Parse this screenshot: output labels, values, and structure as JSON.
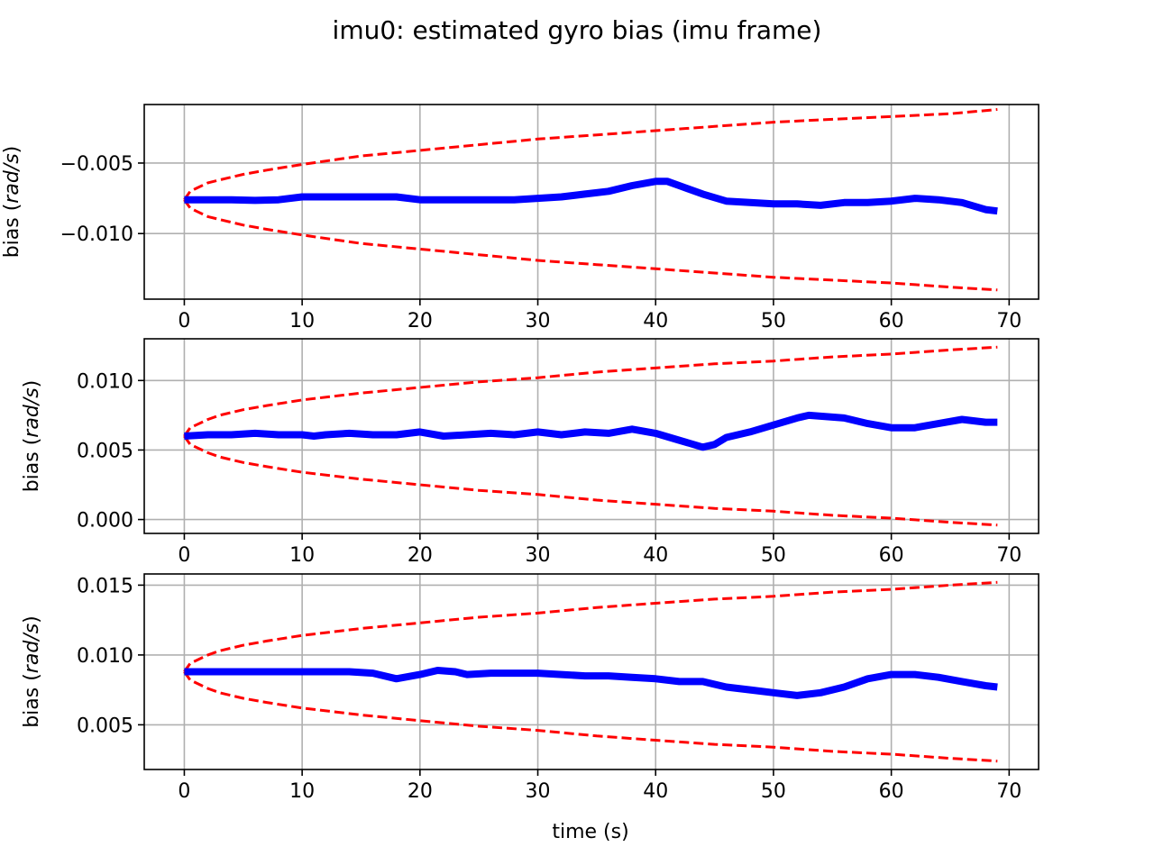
{
  "figure": {
    "title": "imu0: estimated gyro bias (imu frame)",
    "xlabel": "time (s)"
  },
  "colors": {
    "estimate": "#0000ff",
    "bound": "#ff0000",
    "grid": "#b0b0b0",
    "axes": "#000000"
  },
  "chart_data": [
    {
      "type": "line",
      "ylabel_prefix": "bias (",
      "ylabel_unit": "rad/s",
      "ylabel_suffix": ")",
      "xlim": [
        -3.4,
        72.5
      ],
      "ylim": [
        -0.01465,
        -0.00085
      ],
      "xticks": [
        0,
        10,
        20,
        30,
        40,
        50,
        60,
        70
      ],
      "xtick_labels": [
        "0",
        "10",
        "20",
        "30",
        "40",
        "50",
        "60",
        "70"
      ],
      "yticks": [
        -0.005,
        -0.01
      ],
      "ytick_labels": [
        "−0.005",
        "−0.010"
      ],
      "series": [
        {
          "role": "estimate",
          "style": "solid",
          "x": [
            0,
            2,
            4,
            6,
            8,
            10,
            12,
            14,
            16,
            18,
            20,
            22,
            24,
            26,
            28,
            30,
            32,
            34,
            36,
            38,
            40,
            41,
            42,
            44,
            46,
            48,
            50,
            52,
            54,
            56,
            58,
            60,
            62,
            64,
            66,
            68,
            69
          ],
          "y": [
            -0.0076,
            -0.0076,
            -0.0076,
            -0.00765,
            -0.0076,
            -0.0074,
            -0.0074,
            -0.0074,
            -0.0074,
            -0.0074,
            -0.0076,
            -0.0076,
            -0.0076,
            -0.0076,
            -0.0076,
            -0.0075,
            -0.0074,
            -0.0072,
            -0.007,
            -0.0066,
            -0.0063,
            -0.0063,
            -0.0066,
            -0.0072,
            -0.0077,
            -0.0078,
            -0.0079,
            -0.0079,
            -0.008,
            -0.0078,
            -0.0078,
            -0.0077,
            -0.0075,
            -0.0076,
            -0.0078,
            -0.0083,
            -0.0084
          ]
        },
        {
          "role": "upper-bound",
          "style": "dashed",
          "x": [
            0,
            0.5,
            1,
            2,
            3,
            5,
            7,
            10,
            15,
            20,
            25,
            30,
            35,
            40,
            45,
            50,
            55,
            60,
            65,
            69
          ],
          "y": [
            -0.0076,
            -0.007,
            -0.0068,
            -0.0064,
            -0.0062,
            -0.0058,
            -0.0055,
            -0.0051,
            -0.0045,
            -0.0041,
            -0.0037,
            -0.0033,
            -0.003,
            -0.0027,
            -0.0024,
            -0.0021,
            -0.0019,
            -0.0017,
            -0.0015,
            -0.0012
          ]
        },
        {
          "role": "lower-bound",
          "style": "dashed",
          "x": [
            0,
            0.5,
            1,
            2,
            3,
            5,
            7,
            10,
            15,
            20,
            25,
            30,
            35,
            40,
            45,
            50,
            55,
            60,
            65,
            69
          ],
          "y": [
            -0.0076,
            -0.0082,
            -0.0084,
            -0.0088,
            -0.009,
            -0.0094,
            -0.0097,
            -0.0101,
            -0.0107,
            -0.0111,
            -0.0115,
            -0.0119,
            -0.0122,
            -0.0125,
            -0.0128,
            -0.0131,
            -0.0133,
            -0.0135,
            -0.0138,
            -0.014
          ]
        }
      ],
      "grid": true,
      "legend": "none"
    },
    {
      "type": "line",
      "ylabel_prefix": "bias (",
      "ylabel_unit": "rad/s",
      "ylabel_suffix": ")",
      "xlim": [
        -3.4,
        72.5
      ],
      "ylim": [
        -0.001,
        0.013
      ],
      "xticks": [
        0,
        10,
        20,
        30,
        40,
        50,
        60,
        70
      ],
      "xtick_labels": [
        "0",
        "10",
        "20",
        "30",
        "40",
        "50",
        "60",
        "70"
      ],
      "yticks": [
        0.01,
        0.005,
        0.0
      ],
      "ytick_labels": [
        "0.010",
        "0.005",
        "0.000"
      ],
      "series": [
        {
          "role": "estimate",
          "style": "solid",
          "x": [
            0,
            2,
            4,
            6,
            8,
            10,
            11,
            12,
            14,
            16,
            18,
            20,
            22,
            24,
            26,
            28,
            30,
            32,
            34,
            36,
            38,
            40,
            42,
            44,
            45,
            46,
            48,
            50,
            52,
            53,
            56,
            58,
            60,
            62,
            64,
            66,
            68,
            69
          ],
          "y": [
            0.006,
            0.0061,
            0.0061,
            0.0062,
            0.0061,
            0.0061,
            0.006,
            0.0061,
            0.0062,
            0.0061,
            0.0061,
            0.0063,
            0.006,
            0.0061,
            0.0062,
            0.0061,
            0.0063,
            0.0061,
            0.0063,
            0.0062,
            0.0065,
            0.0062,
            0.0057,
            0.0052,
            0.0054,
            0.0059,
            0.0063,
            0.0068,
            0.0073,
            0.0075,
            0.0073,
            0.0069,
            0.0066,
            0.0066,
            0.0069,
            0.0072,
            0.007,
            0.007
          ]
        },
        {
          "role": "upper-bound",
          "style": "dashed",
          "x": [
            0,
            0.5,
            1,
            2,
            3,
            5,
            7,
            10,
            15,
            20,
            25,
            30,
            35,
            40,
            45,
            50,
            55,
            60,
            65,
            69
          ],
          "y": [
            0.006,
            0.0066,
            0.0068,
            0.0072,
            0.0075,
            0.0079,
            0.0082,
            0.0086,
            0.0091,
            0.0095,
            0.0099,
            0.0102,
            0.0106,
            0.0109,
            0.0112,
            0.0114,
            0.0117,
            0.0119,
            0.0122,
            0.0124
          ]
        },
        {
          "role": "lower-bound",
          "style": "dashed",
          "x": [
            0,
            0.5,
            1,
            2,
            3,
            5,
            7,
            10,
            15,
            20,
            25,
            30,
            35,
            40,
            45,
            50,
            55,
            60,
            65,
            69
          ],
          "y": [
            0.006,
            0.0054,
            0.0052,
            0.0048,
            0.0045,
            0.0041,
            0.0038,
            0.0034,
            0.0029,
            0.0025,
            0.0021,
            0.0018,
            0.0014,
            0.0011,
            0.0008,
            0.0006,
            0.0003,
            0.0001,
            -0.0002,
            -0.0004
          ]
        }
      ],
      "grid": true,
      "legend": "none"
    },
    {
      "type": "line",
      "ylabel_prefix": "bias (",
      "ylabel_unit": "rad/s",
      "ylabel_suffix": ")",
      "xlim": [
        -3.4,
        72.5
      ],
      "ylim": [
        0.0018,
        0.0158
      ],
      "xticks": [
        0,
        10,
        20,
        30,
        40,
        50,
        60,
        70
      ],
      "xtick_labels": [
        "0",
        "10",
        "20",
        "30",
        "40",
        "50",
        "60",
        "70"
      ],
      "yticks": [
        0.015,
        0.01,
        0.005
      ],
      "ytick_labels": [
        "0.015",
        "0.010",
        "0.005"
      ],
      "series": [
        {
          "role": "estimate",
          "style": "solid",
          "x": [
            0,
            2,
            4,
            6,
            8,
            10,
            12,
            14,
            16,
            18,
            20,
            21.5,
            23,
            24,
            26,
            28,
            30,
            32,
            34,
            36,
            38,
            40,
            42,
            44,
            46,
            48,
            50,
            52,
            54,
            56,
            58,
            60,
            62,
            64,
            66,
            68,
            69
          ],
          "y": [
            0.0088,
            0.0088,
            0.0088,
            0.0088,
            0.0088,
            0.0088,
            0.0088,
            0.0088,
            0.0087,
            0.0083,
            0.0086,
            0.0089,
            0.0088,
            0.0086,
            0.0087,
            0.0087,
            0.0087,
            0.0086,
            0.0085,
            0.0085,
            0.0084,
            0.0083,
            0.0081,
            0.0081,
            0.0077,
            0.0075,
            0.0073,
            0.0071,
            0.0073,
            0.0077,
            0.0083,
            0.0086,
            0.0086,
            0.0084,
            0.0081,
            0.0078,
            0.0077
          ]
        },
        {
          "role": "upper-bound",
          "style": "dashed",
          "x": [
            0,
            0.5,
            1,
            2,
            3,
            5,
            7,
            10,
            15,
            20,
            25,
            30,
            35,
            40,
            45,
            50,
            55,
            60,
            65,
            69
          ],
          "y": [
            0.0088,
            0.0094,
            0.0096,
            0.01,
            0.0103,
            0.0107,
            0.011,
            0.0114,
            0.0119,
            0.0123,
            0.0127,
            0.013,
            0.0134,
            0.0137,
            0.014,
            0.0142,
            0.0145,
            0.0147,
            0.015,
            0.0152
          ]
        },
        {
          "role": "lower-bound",
          "style": "dashed",
          "x": [
            0,
            0.5,
            1,
            2,
            3,
            5,
            7,
            10,
            15,
            20,
            25,
            30,
            35,
            40,
            45,
            50,
            55,
            60,
            65,
            69
          ],
          "y": [
            0.0088,
            0.0082,
            0.008,
            0.0076,
            0.0073,
            0.0069,
            0.0066,
            0.0062,
            0.0057,
            0.0053,
            0.0049,
            0.0046,
            0.0042,
            0.0039,
            0.0036,
            0.0034,
            0.0031,
            0.0029,
            0.0026,
            0.0024
          ]
        }
      ],
      "grid": true,
      "legend": "none"
    }
  ]
}
